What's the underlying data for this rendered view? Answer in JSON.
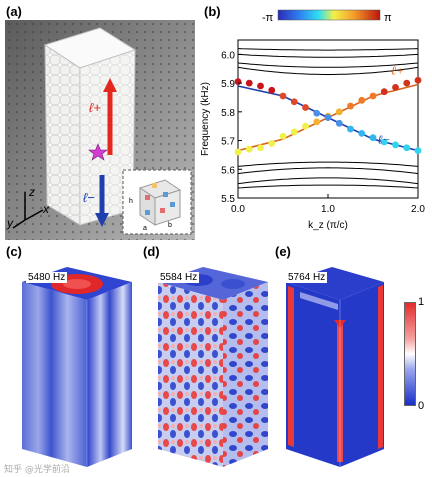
{
  "panels": {
    "a": "(a)",
    "b": "(b)",
    "c": "(c)",
    "d": "(d)",
    "e": "(e)"
  },
  "photo": {
    "axes": {
      "z": "z",
      "x": "x",
      "y": "y"
    },
    "arrow_up_label": "ℓ+",
    "arrow_down_label": "ℓ−",
    "inset_labels": {
      "a": "a",
      "b": "b",
      "h": "h"
    }
  },
  "colorbar_top": {
    "min_label": "-π",
    "max_label": "π"
  },
  "chart_data": {
    "type": "line",
    "xlabel": "k_z (π/c)",
    "ylabel": "Frequency (kHz)",
    "xlim": [
      0,
      2
    ],
    "ylim": [
      5.5,
      6.05
    ],
    "xticks": [
      "0.0",
      "1.0",
      "2.0"
    ],
    "yticks": [
      "5.5",
      "5.6",
      "5.7",
      "5.8",
      "5.9",
      "6.0"
    ],
    "bands_black": [
      [
        [
          0,
          6.02
        ],
        [
          1,
          6.015
        ],
        [
          2,
          6.02
        ]
      ],
      [
        [
          0,
          6.0
        ],
        [
          1,
          5.99
        ],
        [
          2,
          6.0
        ]
      ],
      [
        [
          0,
          5.97
        ],
        [
          1,
          5.955
        ],
        [
          2,
          5.97
        ]
      ],
      [
        [
          0,
          5.955
        ],
        [
          1,
          5.93
        ],
        [
          2,
          5.955
        ]
      ],
      [
        [
          0,
          5.61
        ],
        [
          1,
          5.625
        ],
        [
          2,
          5.61
        ]
      ],
      [
        [
          0,
          5.585
        ],
        [
          1,
          5.605
        ],
        [
          2,
          5.585
        ]
      ],
      [
        [
          0,
          5.55
        ],
        [
          1,
          5.57
        ],
        [
          2,
          5.55
        ]
      ],
      [
        [
          0,
          5.535
        ],
        [
          1,
          5.545
        ],
        [
          2,
          5.535
        ]
      ]
    ],
    "series": [
      {
        "name": "ℓ+",
        "line": [
          [
            0,
            5.665
          ],
          [
            0.5,
            5.705
          ],
          [
            1,
            5.78
          ],
          [
            1.5,
            5.855
          ],
          [
            2,
            5.895
          ]
        ],
        "points": [
          [
            0,
            5.66
          ],
          [
            0.125,
            5.67
          ],
          [
            0.25,
            5.675
          ],
          [
            0.375,
            5.69
          ],
          [
            0.5,
            5.715
          ],
          [
            0.625,
            5.73
          ],
          [
            0.75,
            5.75
          ],
          [
            0.875,
            5.765
          ],
          [
            1.0,
            5.785
          ],
          [
            1.125,
            5.8
          ],
          [
            1.25,
            5.82
          ],
          [
            1.375,
            5.84
          ],
          [
            1.5,
            5.855
          ],
          [
            1.625,
            5.87
          ],
          [
            1.75,
            5.885
          ],
          [
            1.875,
            5.9
          ],
          [
            2.0,
            5.91
          ]
        ]
      },
      {
        "name": "ℓ−",
        "line": [
          [
            0,
            5.89
          ],
          [
            0.5,
            5.855
          ],
          [
            1,
            5.78
          ],
          [
            1.5,
            5.705
          ],
          [
            2,
            5.665
          ]
        ],
        "points": [
          [
            0,
            5.905
          ],
          [
            0.125,
            5.9
          ],
          [
            0.25,
            5.89
          ],
          [
            0.375,
            5.875
          ],
          [
            0.5,
            5.855
          ],
          [
            0.625,
            5.835
          ],
          [
            0.75,
            5.815
          ],
          [
            0.875,
            5.795
          ],
          [
            1.0,
            5.78
          ],
          [
            1.125,
            5.76
          ],
          [
            1.25,
            5.74
          ],
          [
            1.375,
            5.725
          ],
          [
            1.5,
            5.71
          ],
          [
            1.625,
            5.695
          ],
          [
            1.75,
            5.685
          ],
          [
            1.875,
            5.675
          ],
          [
            2.0,
            5.665
          ]
        ]
      }
    ],
    "labels": {
      "l_plus": "ℓ+",
      "l_minus": "ℓ−"
    }
  },
  "cubes": [
    {
      "freq": "5480 Hz"
    },
    {
      "freq": "5584 Hz"
    },
    {
      "freq": "5764 Hz"
    }
  ],
  "colorbar_side": {
    "max_label": "1",
    "min_label": "0"
  },
  "watermark": "知乎 @光学前沿"
}
